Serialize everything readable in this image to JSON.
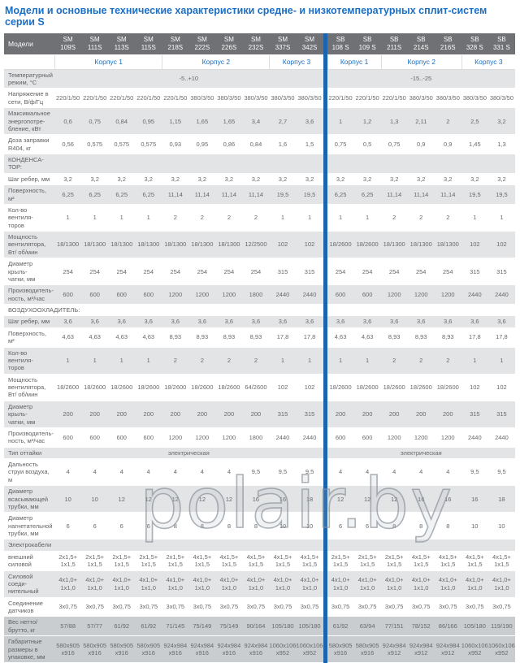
{
  "title": "Модели и основные технические характеристики средне- и низкотемпературных сплит-систем серии S",
  "watermark": "polair.by",
  "colors": {
    "accent_blue": "#1b6fc4",
    "divider_blue": "#1a65ae",
    "header_gray": "#6f7174",
    "row_gray": "#e3e4e6",
    "row_dark": "#c9cdd0"
  },
  "table": {
    "corner_label": "Модели",
    "divider_after": 10,
    "models": [
      "SM 109S",
      "SM 111S",
      "SM 113S",
      "SM 115S",
      "SM 218S",
      "SM 222S",
      "SM 226S",
      "SM 232S",
      "SM 337S",
      "SM 342S",
      "SB 108 S",
      "SB 109 S",
      "SB 211S",
      "SB 214S",
      "SB 216S",
      "SB 328 S",
      "SB 331 S"
    ],
    "korpus_sm": [
      {
        "label": "Корпус 1",
        "span": 4
      },
      {
        "label": "Корпус 2",
        "span": 4
      },
      {
        "label": "Корпус 3",
        "span": 2
      }
    ],
    "korpus_sb": [
      {
        "label": "Корпус 1",
        "span": 2
      },
      {
        "label": "Корпус 2",
        "span": 3
      },
      {
        "label": "Корпус 3",
        "span": 2
      }
    ],
    "rows": [
      {
        "label": "Температурный\nрежим, °С",
        "shade": "g",
        "type": "span",
        "left": "-5..+10",
        "right": "-15..-25"
      },
      {
        "label": "Напряжение в\nсети,  В/ф/Гц",
        "shade": "w",
        "type": "data",
        "cells": [
          "220/1/50",
          "220/1/50",
          "220/1/50",
          "220/1/50",
          "220/1/50",
          "380/3/50",
          "380/3/50",
          "380/3/50",
          "380/3/50",
          "380/3/50",
          "220/1/50",
          "220/1/50",
          "220/1/50",
          "380/3/50",
          "380/3/50",
          "380/3/50",
          "380/3/50"
        ]
      },
      {
        "label": "Максимальное\nэнергопотре-\nбление, кВт",
        "shade": "g",
        "type": "data",
        "cells": [
          "0,6",
          "0,75",
          "0,84",
          "0,95",
          "1,15",
          "1,65",
          "1,65",
          "3,4",
          "2,7",
          "3,6",
          "1",
          "1,2",
          "1,3",
          "2,11",
          "2",
          "2,5",
          "3,2"
        ]
      },
      {
        "label": "Доза заправки\nR404, кг",
        "shade": "w",
        "type": "data",
        "cells": [
          "0,56",
          "0,575",
          "0,575",
          "0,575",
          "0,93",
          "0,95",
          "0,86",
          "0,84",
          "1,6",
          "1,5",
          "0,75",
          "0,5",
          "0,75",
          "0,9",
          "0,9",
          "1,45",
          "1,3"
        ]
      },
      {
        "label": "КОНДЕНСА-\nТОР:",
        "shade": "g",
        "type": "section"
      },
      {
        "label": "Шаг ребер, мм",
        "shade": "w",
        "type": "data",
        "cells": [
          "3,2",
          "3,2",
          "3,2",
          "3,2",
          "3,2",
          "3,2",
          "3,2",
          "3,2",
          "3,2",
          "3,2",
          "3,2",
          "3,2",
          "3,2",
          "3,2",
          "3,2",
          "3,2",
          "3,2"
        ]
      },
      {
        "label": "Поверхность, м²",
        "shade": "g",
        "type": "data",
        "cells": [
          "6,25",
          "6,25",
          "6,25",
          "6,25",
          "11,14",
          "11,14",
          "11,14",
          "11,14",
          "19,5",
          "19,5",
          "6,25",
          "6,25",
          "11,14",
          "11,14",
          "11,14",
          "19,5",
          "19,5"
        ]
      },
      {
        "label": "Кол-во вентиля-\nторов",
        "shade": "w",
        "type": "data",
        "cells": [
          "1",
          "1",
          "1",
          "1",
          "2",
          "2",
          "2",
          "2",
          "1",
          "1",
          "1",
          "1",
          "2",
          "2",
          "2",
          "1",
          "1"
        ]
      },
      {
        "label": "Мощность\nвентилятора,\nВт/ об/мин",
        "shade": "g",
        "type": "data",
        "cells": [
          "18/1300",
          "18/1300",
          "18/1300",
          "18/1300",
          "18/1300",
          "18/1300",
          "18/1300",
          "12/2500",
          "102",
          "102",
          "18/2600",
          "18/2600",
          "18/1300",
          "18/1300",
          "18/1300",
          "102",
          "102"
        ]
      },
      {
        "label": "Диаметр крыль-\nчатки, мм",
        "shade": "w",
        "type": "data",
        "cells": [
          "254",
          "254",
          "254",
          "254",
          "254",
          "254",
          "254",
          "254",
          "315",
          "315",
          "254",
          "254",
          "254",
          "254",
          "254",
          "315",
          "315"
        ]
      },
      {
        "label": "Производитель-\nность, м³/час",
        "shade": "g",
        "type": "data",
        "cells": [
          "600",
          "600",
          "600",
          "600",
          "1200",
          "1200",
          "1200",
          "1800",
          "2440",
          "2440",
          "600",
          "600",
          "1200",
          "1200",
          "1200",
          "2440",
          "2440"
        ]
      },
      {
        "label": "ВОЗДУХООХЛАДИТЕЛЬ:",
        "shade": "w",
        "type": "section"
      },
      {
        "label": "Шаг ребер, мм",
        "shade": "g",
        "type": "data",
        "cells": [
          "3,6",
          "3,6",
          "3,6",
          "3,6",
          "3,6",
          "3,6",
          "3,6",
          "3,6",
          "3,6",
          "3,6",
          "3,6",
          "3,6",
          "3,6",
          "3,6",
          "3,6",
          "3,6",
          "3,6"
        ]
      },
      {
        "label": "Поверхность, м²",
        "shade": "w",
        "type": "data",
        "cells": [
          "4,63",
          "4,63",
          "4,63",
          "4,63",
          "8,93",
          "8,93",
          "8,93",
          "8,93",
          "17,8",
          "17,8",
          "4,63",
          "4,63",
          "8,93",
          "8,93",
          "8,93",
          "17,8",
          "17,8"
        ]
      },
      {
        "label": "Кол-во вентиля-\nторов",
        "shade": "g",
        "type": "data",
        "cells": [
          "1",
          "1",
          "1",
          "1",
          "2",
          "2",
          "2",
          "2",
          "1",
          "1",
          "1",
          "1",
          "2",
          "2",
          "2",
          "1",
          "1"
        ]
      },
      {
        "label": "Мощность\nвентилятора,\nВт/ об/мин",
        "shade": "w",
        "type": "data",
        "cells": [
          "18/2600",
          "18/2600",
          "18/2600",
          "18/2600",
          "18/2600",
          "18/2600",
          "18/2600",
          "64/2600",
          "102",
          "102",
          "18/2600",
          "18/2600",
          "18/2600",
          "18/2600",
          "18/2600",
          "102",
          "102"
        ]
      },
      {
        "label": "Диаметр крыль-\nчатки, мм",
        "shade": "g",
        "type": "data",
        "cells": [
          "200",
          "200",
          "200",
          "200",
          "200",
          "200",
          "200",
          "200",
          "315",
          "315",
          "200",
          "200",
          "200",
          "200",
          "200",
          "315",
          "315"
        ]
      },
      {
        "label": "Производитель-\nность, м³/час",
        "shade": "w",
        "type": "data",
        "cells": [
          "600",
          "600",
          "600",
          "600",
          "1200",
          "1200",
          "1200",
          "1800",
          "2440",
          "2440",
          "600",
          "600",
          "1200",
          "1200",
          "1200",
          "2440",
          "2440"
        ]
      },
      {
        "label": "Тип оттайки",
        "shade": "g",
        "type": "span",
        "left": "электрическая",
        "right": "электрическая"
      },
      {
        "label": "Дальность\nструи воздуха,\nм",
        "shade": "w",
        "type": "data",
        "cells": [
          "4",
          "4",
          "4",
          "4",
          "4",
          "4",
          "4",
          "9,5",
          "9,5",
          "9,5",
          "4",
          "4",
          "4",
          "4",
          "4",
          "9,5",
          "9,5"
        ]
      },
      {
        "label": "Диаметр\nвсасывающей\nтрубки, мм",
        "shade": "g",
        "type": "data",
        "cells": [
          "10",
          "10",
          "12",
          "12",
          "12",
          "12",
          "12",
          "16",
          "16",
          "18",
          "12",
          "12",
          "12",
          "16",
          "16",
          "16",
          "18"
        ]
      },
      {
        "label": "Диаметр\nнагнетательной\nтрубки, мм",
        "shade": "w",
        "type": "data",
        "cells": [
          "6",
          "6",
          "6",
          "6",
          "8",
          "8",
          "8",
          "8",
          "10",
          "10",
          "6",
          "6",
          "8",
          "8",
          "8",
          "10",
          "10"
        ]
      },
      {
        "label": "Электрокабели",
        "shade": "g",
        "type": "section"
      },
      {
        "label": "внешний\nсиловой",
        "shade": "w",
        "type": "data",
        "cells": [
          "2х1,5+\n1х1,5",
          "2х1,5+\n1х1,5",
          "2х1,5+\n1х1,5",
          "2х1,5+\n1х1,5",
          "2х1,5+\n1х1,5",
          "4х1,5+\n1х1,5",
          "4х1,5+\n1х1,5",
          "4х1,5+\n1х1,5",
          "4х1,5+\n1х1,5",
          "4х1,5+\n1х1,5",
          "2х1,5+\n1х1,5",
          "2х1,5+\n1х1,5",
          "2х1,5+\n1х1,5",
          "4х1,5+\n1х1,5",
          "4х1,5+\n1х1,5",
          "4х1,5+\n1х1,5",
          "4х1,5+\n1х1,5"
        ]
      },
      {
        "label": "Силовой соеди-\nнительный",
        "shade": "g",
        "type": "data",
        "cells": [
          "4х1,0+\n1х1,0",
          "4х1,0+\n1х1,0",
          "4х1,0+\n1х1,0",
          "4х1,0+\n1х1,0",
          "4х1,0+\n1х1,0",
          "4х1,0+\n1х1,0",
          "4х1,0+\n1х1,0",
          "4х1,0+\n1х1,0",
          "4х1,0+\n1х1,0",
          "4х1,0+\n1х1,0",
          "4х1,0+\n1х1,0",
          "4х1,0+\n1х1,0",
          "4х1,0+\n1х1,0",
          "4х1,0+\n1х1,0",
          "4х1,0+\n1х1,0",
          "4х1,0+\n1х1,0",
          "4х1,0+\n1х1,0"
        ]
      },
      {
        "label": "Соединение\nдатчиков",
        "shade": "w",
        "type": "data",
        "cells": [
          "3х0,75",
          "3х0,75",
          "3х0,75",
          "3х0,75",
          "3х0,75",
          "3х0,75",
          "3х0,75",
          "3х0,75",
          "3х0,75",
          "3х0,75",
          "3х0,75",
          "3х0,75",
          "3х0,75",
          "3х0,75",
          "3х0,75",
          "3х0,75",
          "3х0,75"
        ]
      },
      {
        "label": "Вес нетто/\nбрутто, кг",
        "shade": "d",
        "type": "data",
        "cells": [
          "57/88",
          "57/77",
          "61/92",
          "61/92",
          "71/145",
          "75/149",
          "75/149",
          "90/164",
          "105/180",
          "105/180",
          "61/92",
          "63/94",
          "77/151",
          "78/152",
          "86/166",
          "105/180",
          "119/190"
        ]
      },
      {
        "label": "Габаритные\nразмеры в\nупаковке, мм",
        "shade": "d",
        "type": "data",
        "cells": [
          "580х905\nх916",
          "580х905\nх916",
          "580х905\nх916",
          "580х905\nх916",
          "924х984\nх916",
          "924х984\nх916",
          "924х984\nх916",
          "924х984\nх916",
          "1060х1060\nх952",
          "1060х1060\nх952",
          "580х905\nх916",
          "580х905\nх916",
          "924х984\nх912",
          "924х984\nх912",
          "924х984\nх912",
          "1060х1060\nх952",
          "1060х1060\nх952"
        ]
      }
    ]
  }
}
